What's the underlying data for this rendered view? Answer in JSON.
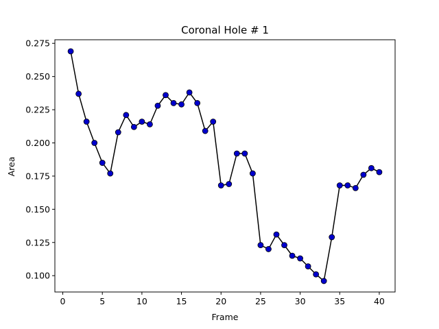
{
  "chart_data": {
    "type": "line",
    "title": "Coronal Hole # 1",
    "xlabel": "Frame",
    "ylabel": "Area",
    "xlim": [
      -1,
      42
    ],
    "ylim": [
      0.0877,
      0.2777
    ],
    "xticks": [
      0,
      5,
      10,
      15,
      20,
      25,
      30,
      35,
      40
    ],
    "yticks": [
      0.1,
      0.125,
      0.15,
      0.175,
      0.2,
      0.225,
      0.25,
      0.275
    ],
    "ytick_labels": [
      "0.100",
      "0.125",
      "0.150",
      "0.175",
      "0.200",
      "0.225",
      "0.250",
      "0.275"
    ],
    "grid": false,
    "line_color": "#000000",
    "marker_color": "#0000cc",
    "series": [
      {
        "x": [
          1,
          2,
          3,
          4,
          5,
          6,
          7,
          8,
          9,
          10,
          11,
          12,
          13,
          14,
          15,
          16,
          17,
          18,
          19,
          20,
          21,
          22,
          23,
          24,
          25,
          26,
          27,
          28,
          29,
          30,
          31,
          32,
          33,
          34,
          35,
          36,
          37,
          38,
          39,
          40
        ],
        "values": [
          0.269,
          0.237,
          0.216,
          0.2,
          0.185,
          0.177,
          0.208,
          0.221,
          0.212,
          0.216,
          0.214,
          0.228,
          0.236,
          0.23,
          0.229,
          0.238,
          0.23,
          0.209,
          0.216,
          0.168,
          0.169,
          0.192,
          0.192,
          0.177,
          0.123,
          0.12,
          0.131,
          0.123,
          0.115,
          0.113,
          0.107,
          0.101,
          0.096,
          0.129,
          0.168,
          0.168,
          0.166,
          0.176,
          0.181,
          0.178
        ]
      }
    ]
  }
}
